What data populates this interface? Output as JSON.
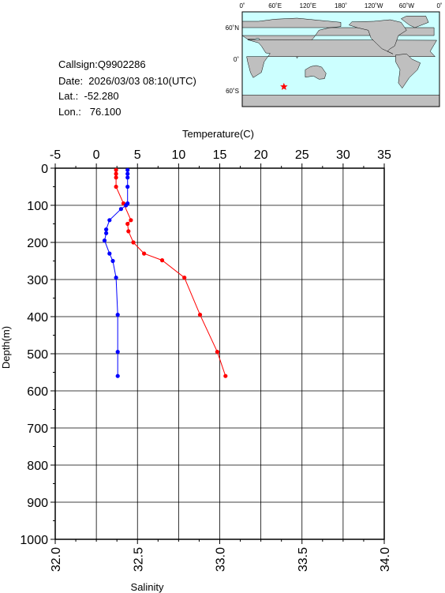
{
  "info": {
    "callsign": "Callsign:Q9902286",
    "date": "Date:  2026/03/03 08:10(UTC)",
    "lat": "Lat.:  -52.280",
    "lon": "Lon.:   76.100"
  },
  "map": {
    "top_labels": [
      "0˚",
      "60˚E",
      "120˚E",
      "180˚",
      "120˚W",
      "60˚W",
      "0˚"
    ],
    "left_labels": [
      "60˚N",
      "0˚",
      "60˚S"
    ],
    "marker_lon": 76.1,
    "marker_lat": -52.28,
    "marker_color": "#ff0000",
    "ocean_color": "#ccffff",
    "land_color": "#bfbfbf"
  },
  "chart_data": {
    "type": "line",
    "ylabel": "Depth(m)",
    "top_xlabel": "Temperature(C)",
    "bottom_xlabel": "Salinity",
    "ylim": [
      0,
      1000
    ],
    "yticks": [
      "0",
      "100",
      "200",
      "300",
      "400",
      "500",
      "600",
      "700",
      "800",
      "900",
      "1000"
    ],
    "temperature_xlim": [
      -5,
      35
    ],
    "temperature_ticks": [
      "-5",
      "0",
      "5",
      "10",
      "15",
      "20",
      "25",
      "30",
      "35"
    ],
    "salinity_xlim": [
      32.0,
      34.0
    ],
    "salinity_ticks": [
      "32.0",
      "32.5",
      "33.0",
      "33.5",
      "34.0"
    ],
    "series": [
      {
        "axis": "temperature",
        "color": "#ff0000",
        "x": [
          2.4,
          2.4,
          2.4,
          2.4,
          3.3,
          4.2,
          3.8,
          3.9,
          4.5,
          5.8,
          8.0,
          10.7,
          12.6,
          14.7,
          15.7
        ],
        "depth": [
          5,
          15,
          25,
          50,
          95,
          140,
          150,
          170,
          200,
          230,
          248,
          295,
          395,
          495,
          560
        ]
      },
      {
        "axis": "salinity",
        "color": "#0000ff",
        "x": [
          32.44,
          32.44,
          32.44,
          32.44,
          32.44,
          32.43,
          32.4,
          32.33,
          32.31,
          32.31,
          32.3,
          32.33,
          32.35,
          32.37,
          32.38,
          32.38,
          32.38
        ],
        "depth": [
          5,
          15,
          25,
          50,
          95,
          100,
          110,
          140,
          165,
          175,
          195,
          230,
          250,
          295,
          395,
          495,
          560
        ]
      }
    ]
  }
}
